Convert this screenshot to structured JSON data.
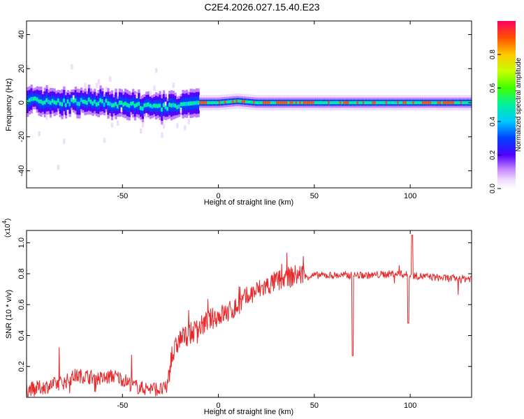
{
  "figure": {
    "title": "C2E4.2026.027.15.40.E23"
  },
  "chart_data": [
    {
      "type": "heatmap",
      "title": "C2E4.2026.027.15.40.E23",
      "xlabel": "Height of straight line (km)",
      "ylabel": "Frequency (Hz)",
      "xlim": [
        -100,
        132
      ],
      "ylim": [
        -50,
        48
      ],
      "x_ticks": [
        "-50",
        "0",
        "50",
        "100"
      ],
      "y_ticks": [
        "40",
        "20",
        "0",
        "-20",
        "-40"
      ],
      "description_of_content": "spectral ridge near 0 Hz; noisy wandering between -5 and +5 Hz for heights below -20 km, steady narrow line at 0 Hz above -5 km with red high-amplitude spots",
      "ridge_frequency_profile": {
        "x": [
          -100,
          -90,
          -80,
          -70,
          -60,
          -50,
          -40,
          -30,
          -20,
          -10,
          0,
          10,
          20,
          40,
          60,
          80,
          100,
          120,
          132
        ],
        "y": [
          2,
          1,
          0,
          1,
          0,
          -1,
          -2,
          -3,
          -1,
          0,
          0,
          1,
          0,
          0,
          0,
          0,
          0,
          0,
          0
        ]
      },
      "colorbar": {
        "label": "Normalized spectral amplitude",
        "range": [
          0,
          1
        ],
        "ticks": [
          "0.0",
          "0.2",
          "0.4",
          "0.6",
          "0.8"
        ]
      },
      "grid": false
    },
    {
      "type": "line",
      "xlabel": "Height of straight line (km)",
      "ylabel": "SNR (10 * v/v)",
      "exponent_label": "(x10",
      "exponent_value": "4",
      "xlim": [
        -100,
        132
      ],
      "ylim": [
        0,
        1.08
      ],
      "x_ticks": [
        "-50",
        "0",
        "50",
        "100"
      ],
      "y_ticks": [
        "0.2",
        "0.4",
        "0.6",
        "0.8",
        "1.0"
      ],
      "series": [
        {
          "color": "#e8282a",
          "x": [
            -100,
            -90,
            -80,
            -75,
            -70,
            -65,
            -60,
            -55,
            -50,
            -45,
            -40,
            -35,
            -30,
            -27,
            -25,
            -22,
            -20,
            -15,
            -10,
            -5,
            0,
            5,
            10,
            15,
            20,
            30,
            40,
            50,
            60,
            70,
            80,
            90,
            95,
            100,
            110,
            120,
            132
          ],
          "y": [
            0.03,
            0.05,
            0.08,
            0.12,
            0.12,
            0.11,
            0.1,
            0.12,
            0.1,
            0.06,
            0.04,
            0.04,
            0.03,
            0.04,
            0.2,
            0.3,
            0.35,
            0.38,
            0.42,
            0.47,
            0.5,
            0.52,
            0.56,
            0.62,
            0.66,
            0.72,
            0.76,
            0.78,
            0.78,
            0.78,
            0.78,
            0.79,
            0.79,
            0.78,
            0.77,
            0.76,
            0.76
          ]
        }
      ],
      "grid": false
    }
  ]
}
